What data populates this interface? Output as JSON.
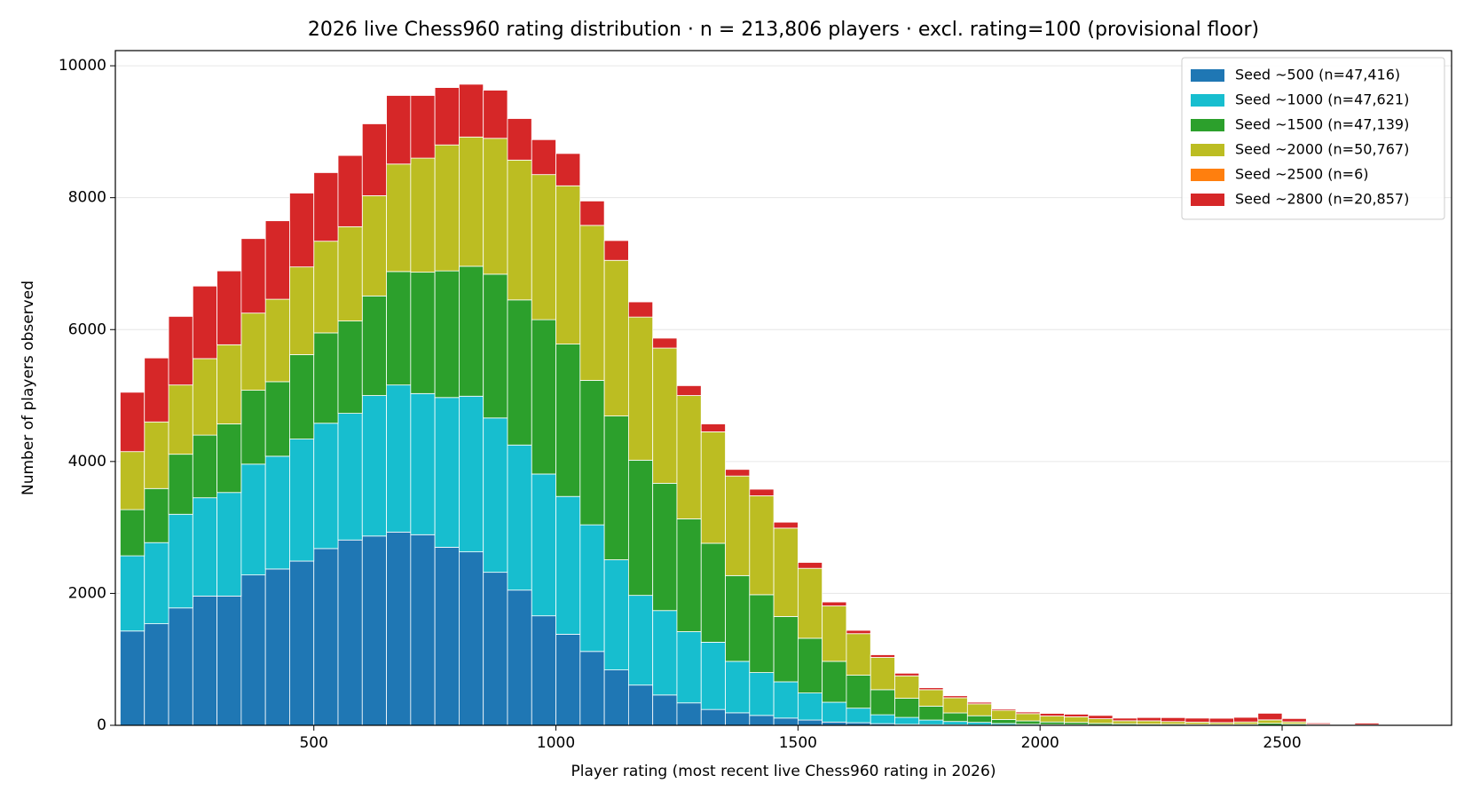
{
  "chart_data": {
    "type": "histogram",
    "stacked": true,
    "title": "2026 live Chess960 rating distribution  ·  n = 213,806 players  ·  excl. rating=100 (provisional floor)",
    "x_label": "Player rating (most recent live Chess960 rating in 2026)",
    "y_label": "Number of players observed",
    "bins": [
      100,
      150,
      200,
      250,
      300,
      350,
      400,
      450,
      500,
      550,
      600,
      650,
      700,
      750,
      800,
      850,
      900,
      950,
      1000,
      1050,
      1100,
      1150,
      1200,
      1250,
      1300,
      1350,
      1400,
      1450,
      1500,
      1550,
      1600,
      1650,
      1700,
      1750,
      1800,
      1850,
      1900,
      1950,
      2000,
      2050,
      2100,
      2150,
      2200,
      2250,
      2300,
      2350,
      2400,
      2450,
      2500,
      2550,
      2600,
      2650,
      2700,
      2750,
      2800
    ],
    "series": [
      {
        "name": "Seed ~500 (n=47,416)",
        "color": "#1f77b4",
        "values": [
          1430,
          1540,
          1780,
          1960,
          1960,
          2280,
          2370,
          2490,
          2680,
          2810,
          2870,
          2930,
          2890,
          2700,
          2630,
          2320,
          2050,
          1660,
          1380,
          1120,
          840,
          610,
          460,
          340,
          240,
          190,
          150,
          110,
          80,
          50,
          40,
          25,
          15,
          10,
          8,
          5,
          3,
          2,
          1,
          1,
          0,
          0,
          0,
          0,
          0,
          0,
          0,
          0,
          0,
          0,
          0,
          0,
          0,
          0
        ]
      },
      {
        "name": "Seed ~1000 (n=47,621)",
        "color": "#17becf",
        "values": [
          1140,
          1230,
          1420,
          1490,
          1570,
          1680,
          1710,
          1850,
          1900,
          1920,
          2130,
          2230,
          2140,
          2270,
          2360,
          2340,
          2200,
          2150,
          2090,
          1920,
          1670,
          1360,
          1280,
          1080,
          1020,
          780,
          650,
          550,
          410,
          300,
          220,
          135,
          105,
          70,
          50,
          40,
          25,
          15,
          10,
          8,
          5,
          4,
          3,
          2,
          2,
          2,
          1,
          1,
          1,
          0,
          0,
          0,
          0,
          0
        ]
      },
      {
        "name": "Seed ~1500 (n=47,139)",
        "color": "#2ca02c",
        "values": [
          700,
          820,
          910,
          950,
          1040,
          1120,
          1130,
          1280,
          1370,
          1400,
          1510,
          1720,
          1840,
          1920,
          1970,
          2180,
          2200,
          2340,
          2310,
          2190,
          2180,
          2050,
          1930,
          1710,
          1500,
          1300,
          1180,
          990,
          830,
          620,
          500,
          380,
          290,
          210,
          130,
          100,
          60,
          50,
          40,
          35,
          25,
          20,
          15,
          15,
          12,
          10,
          15,
          30,
          20,
          5,
          1,
          2,
          0,
          0
        ]
      },
      {
        "name": "Seed ~2000 (n=50,767)",
        "color": "#bcbd22",
        "values": [
          880,
          1010,
          1050,
          1160,
          1200,
          1170,
          1250,
          1330,
          1390,
          1430,
          1520,
          1630,
          1730,
          1910,
          1960,
          2060,
          2120,
          2200,
          2400,
          2350,
          2360,
          2170,
          2050,
          1870,
          1690,
          1510,
          1500,
          1340,
          1060,
          840,
          630,
          490,
          340,
          250,
          230,
          180,
          140,
          110,
          90,
          85,
          70,
          45,
          50,
          40,
          35,
          30,
          35,
          50,
          30,
          10,
          3,
          5,
          1,
          0
        ]
      },
      {
        "name": "Seed ~2500 (n=6)",
        "color": "#ff7f0e",
        "values": [
          0,
          0,
          0,
          0,
          0,
          0,
          0,
          0,
          0,
          0,
          0,
          0,
          0,
          0,
          0,
          0,
          0,
          0,
          0,
          0,
          0,
          0,
          0,
          0,
          0,
          0,
          0,
          0,
          0,
          0,
          0,
          0,
          0,
          0,
          0,
          0,
          0,
          0,
          0,
          0,
          0,
          0,
          0,
          0,
          0,
          0,
          0,
          2,
          2,
          1,
          0,
          1,
          0,
          0
        ]
      },
      {
        "name": "Seed ~2800 (n=20,857)",
        "color": "#d62728",
        "values": [
          900,
          970,
          1040,
          1100,
          1120,
          1130,
          1190,
          1120,
          1040,
          1080,
          1090,
          1040,
          950,
          870,
          800,
          730,
          630,
          530,
          490,
          370,
          300,
          230,
          150,
          150,
          120,
          100,
          100,
          90,
          90,
          60,
          50,
          40,
          40,
          30,
          30,
          25,
          20,
          25,
          40,
          40,
          50,
          40,
          50,
          60,
          60,
          65,
          70,
          100,
          50,
          20,
          5,
          25,
          5,
          2
        ]
      }
    ],
    "xlim": [
      90,
      2850
    ],
    "ylim": [
      0,
      10230
    ],
    "xticks": [
      500,
      1000,
      1500,
      2000,
      2500
    ],
    "yticks": [
      0,
      2000,
      4000,
      6000,
      8000,
      10000
    ],
    "grid": true,
    "legend": "upper right"
  }
}
